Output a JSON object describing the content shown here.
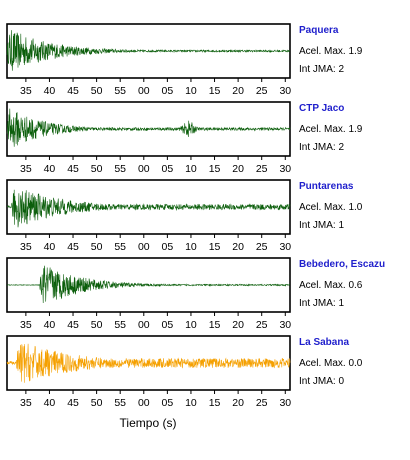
{
  "colors": {
    "dark_green": "#0b5e0b",
    "orange": "#f5a000",
    "station_name": "#1f1fcc"
  },
  "chart_data": [
    {
      "type": "line",
      "station": "Paquera",
      "accel_label": "Acel. Max. 1.9",
      "intensity_label": "Int JMA: 2",
      "color": "#0b5e0b",
      "onset_s": 31,
      "peak_at_onset": 1.0,
      "decay_s": 9,
      "late_burst": null,
      "floor": 0.04
    },
    {
      "type": "line",
      "station": "CTP Jaco",
      "accel_label": "Acel. Max. 1.9",
      "intensity_label": "Int JMA: 2",
      "color": "#0b5e0b",
      "onset_s": 31,
      "peak_at_onset": 1.0,
      "decay_s": 7,
      "late_burst": {
        "at_s": 69.5,
        "amp": 0.3
      },
      "floor": 0.06
    },
    {
      "type": "line",
      "station": "Puntarenas",
      "accel_label": "Acel. Max. 1.0",
      "intensity_label": "Int JMA: 1",
      "color": "#0b5e0b",
      "onset_s": 32,
      "peak_at_onset": 1.0,
      "decay_s": 10,
      "late_burst": null,
      "floor": 0.12
    },
    {
      "type": "line",
      "station": "Bebedero, Escazu",
      "accel_label": "Acel. Max. 0.6",
      "intensity_label": "Int JMA: 1",
      "color": "#0b5e0b",
      "onset_s": 38,
      "peak_at_onset": 1.0,
      "decay_s": 8,
      "late_burst": null,
      "floor": 0.03
    },
    {
      "type": "line",
      "station": "La Sabana",
      "accel_label": "Acel. Max. 0.0",
      "intensity_label": "Int JMA: 0",
      "color": "#f5a000",
      "onset_s": 33,
      "peak_at_onset": 1.0,
      "decay_s": 12,
      "late_burst": null,
      "floor": 0.2
    }
  ],
  "x_ticks": [
    "35",
    "40",
    "45",
    "50",
    "55",
    "00",
    "05",
    "10",
    "15",
    "20",
    "25",
    "30"
  ],
  "x_tick_values_s": [
    35,
    40,
    45,
    50,
    55,
    60,
    65,
    70,
    75,
    80,
    85,
    90
  ],
  "xlim_s": [
    31,
    91
  ],
  "xlabel": "Tiempo (s)"
}
